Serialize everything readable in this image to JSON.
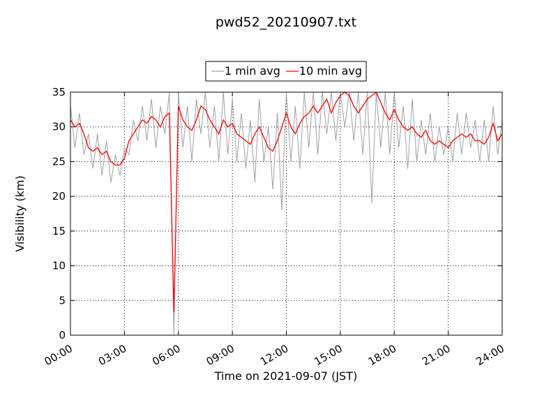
{
  "chart_data": {
    "type": "line",
    "title": "pwd52_20210907.txt",
    "x_label": "Time on 2021-09-07 (JST)",
    "y_label": "Visibility (km)",
    "xlim": [
      0,
      24
    ],
    "ylim": [
      0,
      35
    ],
    "xticks": [
      {
        "value": 0,
        "label": "00:00"
      },
      {
        "value": 3,
        "label": "03:00"
      },
      {
        "value": 6,
        "label": "06:00"
      },
      {
        "value": 9,
        "label": "09:00"
      },
      {
        "value": 12,
        "label": "12:00"
      },
      {
        "value": 15,
        "label": "15:00"
      },
      {
        "value": 18,
        "label": "18:00"
      },
      {
        "value": 21,
        "label": "21:00"
      },
      {
        "value": 24,
        "label": "24:00"
      }
    ],
    "yticks": [
      0,
      5,
      10,
      15,
      20,
      25,
      30,
      35
    ],
    "grid": true,
    "legend": "top",
    "x": [
      0,
      0.25,
      0.5,
      0.75,
      1,
      1.25,
      1.5,
      1.75,
      2,
      2.25,
      2.5,
      2.75,
      3,
      3.25,
      3.5,
      3.75,
      4,
      4.25,
      4.5,
      4.75,
      5,
      5.25,
      5.5,
      5.75,
      6,
      6.25,
      6.5,
      6.75,
      7,
      7.25,
      7.5,
      7.75,
      8,
      8.25,
      8.5,
      8.75,
      9,
      9.25,
      9.5,
      9.75,
      10,
      10.25,
      10.5,
      10.75,
      11,
      11.25,
      11.5,
      11.75,
      12,
      12.25,
      12.5,
      12.75,
      13,
      13.25,
      13.5,
      13.75,
      14,
      14.25,
      14.5,
      14.75,
      15,
      15.25,
      15.5,
      15.75,
      16,
      16.25,
      16.5,
      16.75,
      17,
      17.25,
      17.5,
      17.75,
      18,
      18.25,
      18.5,
      18.75,
      19,
      19.25,
      19.5,
      19.75,
      20,
      20.25,
      20.5,
      20.75,
      21,
      21.25,
      21.5,
      21.75,
      22,
      22.25,
      22.5,
      22.75,
      23,
      23.25,
      23.5,
      23.75,
      24
    ],
    "series": [
      {
        "name": "1 min avg",
        "color": "#a0a0a0",
        "values": [
          33,
          27,
          32,
          26,
          29,
          24,
          29,
          23,
          28,
          22,
          26,
          23,
          27,
          26,
          31,
          28,
          33,
          28,
          34,
          27,
          33,
          29,
          35,
          0,
          35,
          27,
          33,
          25,
          34,
          29,
          35,
          27,
          33,
          25,
          35,
          26,
          34,
          25,
          32,
          24,
          31,
          22,
          34,
          25,
          30,
          21,
          32,
          18,
          35,
          25,
          33,
          24,
          35,
          27,
          35,
          26,
          35,
          29,
          35,
          28,
          35,
          30,
          35,
          28,
          35,
          26,
          35,
          19,
          35,
          27,
          35,
          26,
          35,
          27,
          33,
          24,
          34,
          25,
          31,
          26,
          32,
          25,
          30,
          26,
          30,
          25,
          32,
          26,
          32,
          27,
          31,
          25,
          31,
          25,
          33,
          26,
          31
        ]
      },
      {
        "name": "10 min avg",
        "color": "#ff0000",
        "values": [
          31,
          30,
          30.5,
          29,
          27,
          26.5,
          27,
          26,
          26.5,
          25,
          24.5,
          24.5,
          25.5,
          28,
          29,
          30,
          31,
          30.5,
          31.5,
          31,
          30,
          31.5,
          32,
          3.3,
          33,
          31,
          30,
          29.5,
          31,
          33,
          32.5,
          31,
          30,
          29,
          31,
          30,
          30.5,
          29,
          28.5,
          28,
          27.5,
          29,
          30,
          28.5,
          27,
          26.5,
          28,
          30,
          32,
          30,
          29,
          30.5,
          31.5,
          32,
          33,
          32,
          33,
          34,
          32,
          33.5,
          34.5,
          35,
          34.5,
          33,
          32,
          33,
          34,
          34.5,
          35,
          33.5,
          32,
          31,
          32.5,
          31,
          30,
          29.5,
          30,
          29,
          28.5,
          29.5,
          28,
          27.5,
          28,
          27.5,
          27,
          28,
          28.5,
          29,
          28.5,
          29,
          28,
          28,
          27.5,
          28.5,
          30.5,
          28,
          29
        ]
      }
    ]
  }
}
